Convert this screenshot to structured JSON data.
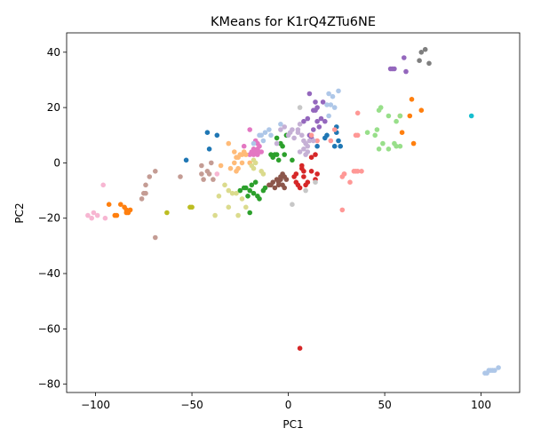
{
  "chart_data": {
    "type": "scatter",
    "title": "KMeans for K1rQ4ZTu6NE",
    "xlabel": "PC1",
    "ylabel": "PC2",
    "xlim": [
      -115,
      120
    ],
    "ylim": [
      -83,
      47
    ],
    "xticks": [
      -100,
      -50,
      0,
      50,
      100
    ],
    "yticks": [
      40,
      20,
      0,
      -20,
      -40,
      -60,
      -80
    ],
    "xtick_labels": [
      "−100",
      "−50",
      "0",
      "50",
      "100"
    ],
    "ytick_labels": [
      "40",
      "20",
      "0",
      "−20",
      "−40",
      "−60",
      "−80"
    ],
    "grid": false,
    "series": [
      {
        "color": "#1f77b4",
        "points": [
          [
            -53,
            1
          ],
          [
            -42,
            11
          ],
          [
            -41,
            5
          ],
          [
            -37,
            10
          ],
          [
            25,
            13
          ],
          [
            25,
            11
          ],
          [
            27,
            6
          ],
          [
            26,
            8
          ],
          [
            24,
            6
          ],
          [
            15,
            6
          ],
          [
            19,
            9
          ],
          [
            20,
            10
          ]
        ]
      },
      {
        "color": "#ff7f0e",
        "points": [
          [
            -93,
            -15
          ],
          [
            -90,
            -19
          ],
          [
            -89,
            -19
          ],
          [
            -87,
            -15
          ],
          [
            -85,
            -16
          ],
          [
            -84,
            -17
          ],
          [
            -83,
            -18
          ],
          [
            -82,
            -17
          ],
          [
            -84,
            -18
          ],
          [
            58,
            17
          ],
          [
            64,
            23
          ],
          [
            65,
            7
          ],
          [
            69,
            19
          ],
          [
            63,
            17
          ],
          [
            59,
            11
          ]
        ]
      },
      {
        "color": "#2ca02c",
        "points": [
          [
            -25,
            -10
          ],
          [
            -22,
            -9
          ],
          [
            -21,
            -12
          ],
          [
            -20,
            -18
          ],
          [
            -19,
            -8
          ],
          [
            -18,
            -11
          ],
          [
            -17,
            -7
          ],
          [
            -16,
            -12
          ],
          [
            -15,
            -13
          ],
          [
            -13,
            -10
          ],
          [
            -12,
            -9
          ],
          [
            -20,
            -10
          ],
          [
            -23,
            -9
          ],
          [
            -8,
            2
          ],
          [
            -7,
            3
          ],
          [
            -6,
            3
          ],
          [
            -5,
            1
          ],
          [
            -3,
            6
          ],
          [
            -2,
            3
          ],
          [
            -4,
            7
          ],
          [
            -6,
            9
          ],
          [
            -1,
            10
          ],
          [
            2,
            1
          ],
          [
            -9,
            3
          ]
        ]
      },
      {
        "color": "#d62728",
        "points": [
          [
            3,
            -5
          ],
          [
            5,
            -8
          ],
          [
            6,
            -9
          ],
          [
            4,
            -7
          ],
          [
            7,
            -2
          ],
          [
            7,
            -1
          ],
          [
            8,
            -3
          ],
          [
            8,
            -5
          ],
          [
            9,
            -8
          ],
          [
            12,
            2
          ],
          [
            12,
            -3
          ],
          [
            14,
            -6
          ],
          [
            14,
            3
          ],
          [
            15,
            -4
          ],
          [
            6,
            -67
          ],
          [
            4,
            -4
          ],
          [
            10,
            -7
          ]
        ]
      },
      {
        "color": "#9467bd",
        "points": [
          [
            10,
            16
          ],
          [
            11,
            25
          ],
          [
            13,
            19
          ],
          [
            14,
            19
          ],
          [
            14,
            22
          ],
          [
            15,
            15
          ],
          [
            15,
            20
          ],
          [
            16,
            13
          ],
          [
            18,
            22
          ],
          [
            17,
            16
          ],
          [
            19,
            15
          ],
          [
            53,
            34
          ],
          [
            54,
            34
          ],
          [
            55,
            34
          ],
          [
            60,
            38
          ],
          [
            61,
            33
          ],
          [
            11,
            10
          ],
          [
            12,
            9
          ],
          [
            13,
            12
          ],
          [
            8,
            15
          ]
        ]
      },
      {
        "color": "#8c564b",
        "points": [
          [
            -9,
            -8
          ],
          [
            -7,
            -9
          ],
          [
            -6,
            -6
          ],
          [
            -5,
            -7
          ],
          [
            -5,
            -8
          ],
          [
            -4,
            -6
          ],
          [
            -3,
            -4
          ],
          [
            -2,
            -5
          ],
          [
            -4,
            -5
          ],
          [
            -3,
            -8
          ],
          [
            -2,
            -9
          ],
          [
            -1,
            -6
          ],
          [
            -10,
            -8
          ],
          [
            -8,
            -7
          ]
        ]
      },
      {
        "color": "#e377c2",
        "points": [
          [
            -23,
            6
          ],
          [
            -20,
            12
          ],
          [
            -19,
            4
          ],
          [
            -18,
            3
          ],
          [
            -18,
            5
          ],
          [
            -17,
            4
          ],
          [
            -16,
            5
          ],
          [
            -16,
            3
          ],
          [
            -15,
            4
          ],
          [
            -15,
            6
          ],
          [
            -14,
            4
          ],
          [
            -17,
            8
          ],
          [
            -20,
            3
          ],
          [
            -16,
            7
          ]
        ]
      },
      {
        "color": "#7f7f7f",
        "points": [
          [
            68,
            37
          ],
          [
            69,
            40
          ],
          [
            71,
            41
          ],
          [
            73,
            36
          ]
        ]
      },
      {
        "color": "#bcbd22",
        "points": [
          [
            -63,
            -18
          ],
          [
            -51,
            -16
          ],
          [
            -50,
            -16
          ]
        ]
      },
      {
        "color": "#17becf",
        "points": [
          [
            95,
            17
          ]
        ]
      },
      {
        "color": "#aec7e8",
        "points": [
          [
            -18,
            7
          ],
          [
            -15,
            10
          ],
          [
            -14,
            10
          ],
          [
            -12,
            11
          ],
          [
            -10,
            12
          ],
          [
            -13,
            8
          ],
          [
            -9,
            10
          ],
          [
            -4,
            14
          ],
          [
            20,
            21
          ],
          [
            21,
            25
          ],
          [
            22,
            21
          ],
          [
            23,
            24
          ],
          [
            24,
            20
          ],
          [
            26,
            26
          ],
          [
            21,
            17
          ],
          [
            102,
            -76
          ],
          [
            103,
            -76
          ],
          [
            104,
            -75
          ],
          [
            105,
            -75
          ],
          [
            106,
            -75
          ],
          [
            107,
            -75
          ],
          [
            109,
            -74
          ]
        ]
      },
      {
        "color": "#ffbb78",
        "points": [
          [
            -35,
            -1
          ],
          [
            -31,
            7
          ],
          [
            -30,
            -2
          ],
          [
            -28,
            0
          ],
          [
            -28,
            4
          ],
          [
            -27,
            2
          ],
          [
            -26,
            2
          ],
          [
            -25,
            3
          ],
          [
            -24,
            3
          ],
          [
            -23,
            4
          ],
          [
            -22,
            3
          ],
          [
            -26,
            -2
          ],
          [
            -24,
            0
          ],
          [
            -27,
            -3
          ],
          [
            -20,
            0
          ]
        ]
      },
      {
        "color": "#98df8a",
        "points": [
          [
            41,
            11
          ],
          [
            45,
            10
          ],
          [
            46,
            12
          ],
          [
            47,
            19
          ],
          [
            48,
            20
          ],
          [
            47,
            5
          ],
          [
            49,
            7
          ],
          [
            52,
            17
          ],
          [
            52,
            5
          ],
          [
            55,
            7
          ],
          [
            56,
            6
          ],
          [
            58,
            17
          ],
          [
            58,
            6
          ],
          [
            56,
            15
          ]
        ]
      },
      {
        "color": "#ff9896",
        "points": [
          [
            12,
            10
          ],
          [
            15,
            8
          ],
          [
            22,
            8
          ],
          [
            24,
            12
          ],
          [
            28,
            -5
          ],
          [
            29,
            -4
          ],
          [
            29,
            -4
          ],
          [
            32,
            -7
          ],
          [
            34,
            -3
          ],
          [
            35,
            -3
          ],
          [
            36,
            -3
          ],
          [
            35,
            10
          ],
          [
            36,
            10
          ],
          [
            36,
            18
          ],
          [
            38,
            -3
          ],
          [
            28,
            -17
          ]
        ]
      },
      {
        "color": "#c5b0d5",
        "points": [
          [
            -6,
            7
          ],
          [
            -4,
            12
          ],
          [
            -2,
            13
          ],
          [
            0,
            10
          ],
          [
            1,
            11
          ],
          [
            2,
            12
          ],
          [
            3,
            9
          ],
          [
            5,
            11
          ],
          [
            5,
            12
          ],
          [
            6,
            14
          ],
          [
            7,
            10
          ],
          [
            8,
            8
          ],
          [
            9,
            7
          ],
          [
            10,
            6
          ],
          [
            10,
            4
          ],
          [
            11,
            8
          ],
          [
            8,
            5
          ],
          [
            6,
            4
          ],
          [
            9,
            3
          ],
          [
            13,
            8
          ]
        ]
      },
      {
        "color": "#c49c94",
        "points": [
          [
            -76,
            -13
          ],
          [
            -75,
            -11
          ],
          [
            -74,
            -8
          ],
          [
            -74,
            -11
          ],
          [
            -72,
            -5
          ],
          [
            -69,
            -3
          ],
          [
            -69,
            -27
          ],
          [
            -56,
            -5
          ],
          [
            -45,
            -1
          ],
          [
            -45,
            -4
          ],
          [
            -44,
            -6
          ],
          [
            -42,
            -3
          ],
          [
            -41,
            -4
          ],
          [
            -40,
            0
          ],
          [
            -39,
            -6
          ]
        ]
      },
      {
        "color": "#f7b6d2",
        "points": [
          [
            -104,
            -19
          ],
          [
            -102,
            -20
          ],
          [
            -101,
            -18
          ],
          [
            -99,
            -19
          ],
          [
            -96,
            -8
          ],
          [
            -95,
            -20
          ],
          [
            -37,
            -4
          ]
        ]
      },
      {
        "color": "#c7c7c7",
        "points": [
          [
            2,
            -15
          ],
          [
            9,
            -10
          ],
          [
            14,
            -7
          ],
          [
            6,
            20
          ]
        ]
      },
      {
        "color": "#dbdb8d",
        "points": [
          [
            -38,
            -19
          ],
          [
            -36,
            -12
          ],
          [
            -33,
            -8
          ],
          [
            -31,
            -16
          ],
          [
            -31,
            -10
          ],
          [
            -29,
            -11
          ],
          [
            -27,
            -11
          ],
          [
            -26,
            -19
          ],
          [
            -24,
            -13
          ],
          [
            -22,
            -16
          ],
          [
            -19,
            -1
          ],
          [
            -18,
            1
          ],
          [
            -18,
            -2
          ],
          [
            -17,
            0
          ],
          [
            -14,
            -3
          ],
          [
            -13,
            -4
          ]
        ]
      }
    ]
  }
}
